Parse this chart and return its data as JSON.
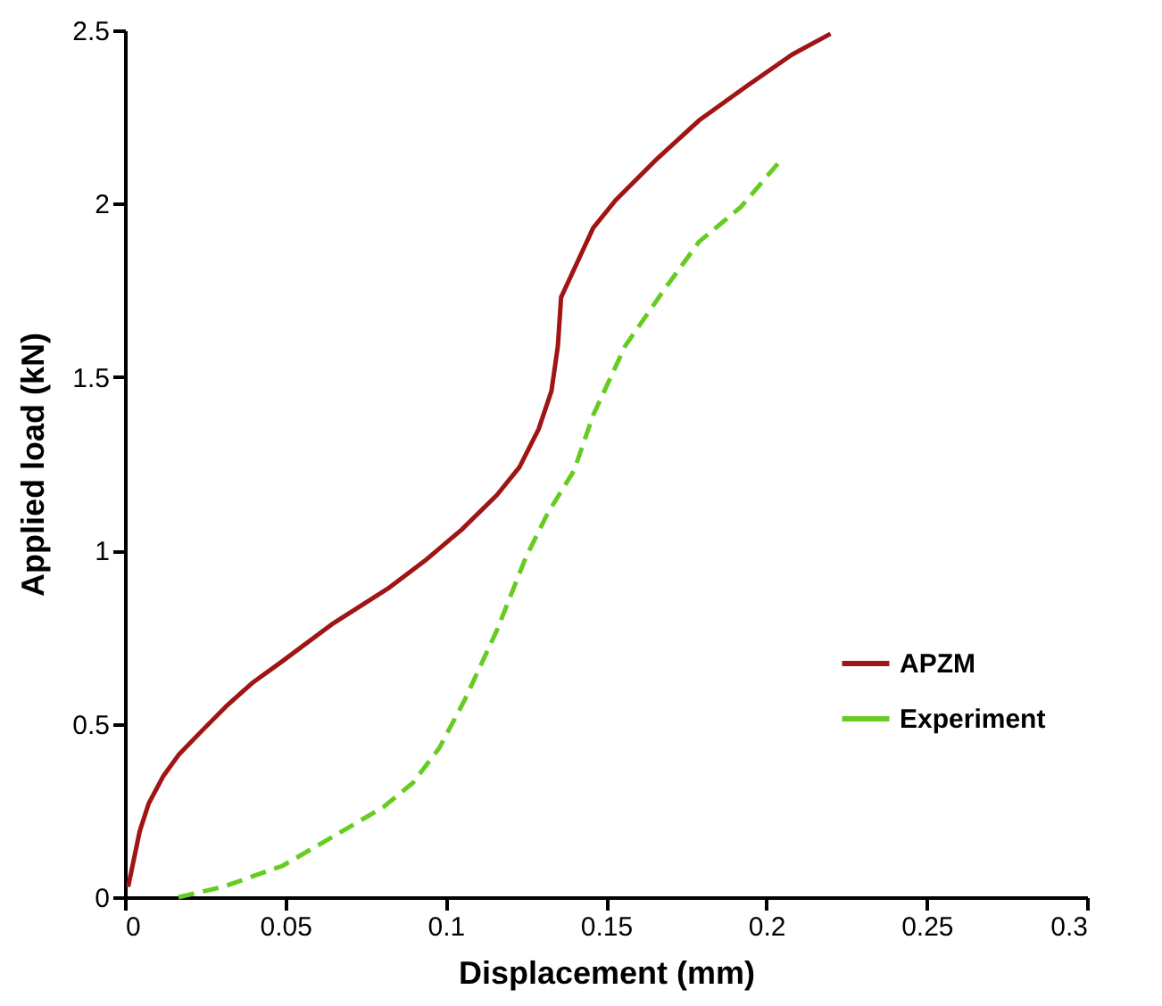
{
  "chart_data": {
    "type": "line",
    "xlabel": "Displacement (mm)",
    "ylabel": "Applied load (kN)",
    "xlim": [
      0,
      0.3
    ],
    "xticks": [
      0,
      0.05,
      0.1,
      0.15,
      0.2,
      0.25,
      0.3
    ],
    "ylim": [
      0,
      2.5
    ],
    "yticks": [
      0,
      0.5,
      1,
      1.5,
      2,
      2.5
    ],
    "grid": false,
    "legend": "right",
    "marker": "none",
    "series": [
      {
        "name": "APZM",
        "color": "#a01414",
        "line_style": "solid",
        "x": [
          0.001,
          0.0046,
          0.0074,
          0.012,
          0.0167,
          0.024,
          0.0315,
          0.04,
          0.049,
          0.065,
          0.082,
          0.0935,
          0.105,
          0.116,
          0.123,
          0.129,
          0.133,
          0.135,
          0.136,
          0.141,
          0.146,
          0.153,
          0.166,
          0.179,
          0.194,
          0.208,
          0.22
        ],
        "values": [
          0.03,
          0.19,
          0.27,
          0.35,
          0.41,
          0.48,
          0.55,
          0.62,
          0.68,
          0.79,
          0.89,
          0.97,
          1.06,
          1.16,
          1.24,
          1.35,
          1.46,
          1.59,
          1.73,
          1.83,
          1.93,
          2.01,
          2.13,
          2.24,
          2.34,
          2.43,
          2.49
        ]
      },
      {
        "name": "Experiment",
        "color": "#66cc22",
        "line_style": "dashed",
        "x": [
          0.0167,
          0.0306,
          0.049,
          0.064,
          0.0806,
          0.0898,
          0.098,
          0.106,
          0.116,
          0.125,
          0.132,
          0.14,
          0.146,
          0.156,
          0.168,
          0.179,
          0.192,
          0.204
        ],
        "values": [
          0,
          0.03,
          0.09,
          0.17,
          0.26,
          0.33,
          0.43,
          0.57,
          0.77,
          0.98,
          1.11,
          1.23,
          1.39,
          1.59,
          1.75,
          1.89,
          1.99,
          2.12
        ]
      }
    ]
  }
}
